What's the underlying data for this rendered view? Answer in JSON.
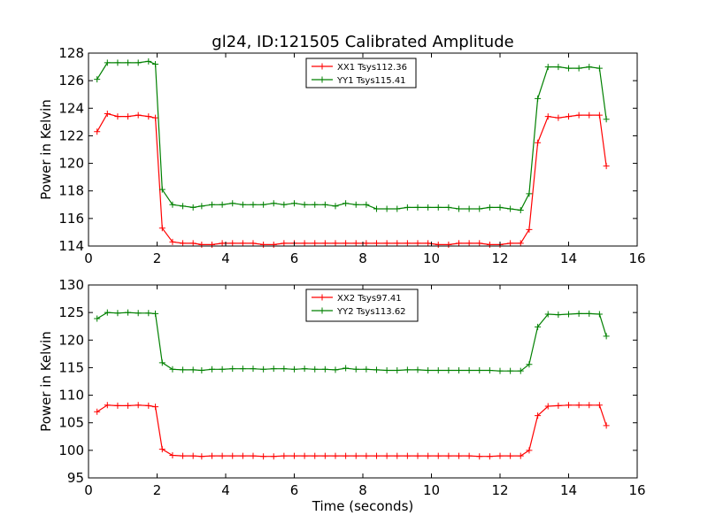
{
  "title": "gl24, ID:121505 Calibrated Amplitude",
  "colors": {
    "red": "#ff0000",
    "green": "#008000",
    "axis": "#000000"
  },
  "chart_data": [
    {
      "type": "line",
      "xlabel": "",
      "ylabel": "Power in Kelvin",
      "xlim": [
        0,
        16
      ],
      "ylim": [
        114,
        128
      ],
      "xticks": [
        0,
        2,
        4,
        6,
        8,
        10,
        12,
        14,
        16
      ],
      "yticks": [
        114,
        116,
        118,
        120,
        122,
        124,
        126,
        128
      ],
      "grid": false,
      "legend": "top-center",
      "x": [
        0.25,
        0.55,
        0.85,
        1.15,
        1.45,
        1.75,
        1.95,
        2.15,
        2.45,
        2.75,
        3.05,
        3.3,
        3.6,
        3.9,
        4.2,
        4.5,
        4.8,
        5.1,
        5.4,
        5.7,
        6.0,
        6.3,
        6.6,
        6.9,
        7.2,
        7.5,
        7.8,
        8.1,
        8.4,
        8.7,
        9.0,
        9.3,
        9.6,
        9.9,
        10.2,
        10.5,
        10.8,
        11.1,
        11.4,
        11.7,
        12.0,
        12.3,
        12.6,
        12.85,
        13.1,
        13.4,
        13.7,
        14.0,
        14.3,
        14.6,
        14.9,
        15.1
      ],
      "series": [
        {
          "name": "XX1 Tsys112.36",
          "color": "#ff0000",
          "values": [
            122.3,
            123.6,
            123.4,
            123.4,
            123.5,
            123.4,
            123.3,
            115.3,
            114.3,
            114.2,
            114.2,
            114.1,
            114.1,
            114.2,
            114.2,
            114.2,
            114.2,
            114.1,
            114.1,
            114.2,
            114.2,
            114.2,
            114.2,
            114.2,
            114.2,
            114.2,
            114.2,
            114.2,
            114.2,
            114.2,
            114.2,
            114.2,
            114.2,
            114.2,
            114.1,
            114.1,
            114.2,
            114.2,
            114.2,
            114.1,
            114.1,
            114.2,
            114.2,
            115.2,
            121.5,
            123.4,
            123.3,
            123.4,
            123.5,
            123.5,
            123.5,
            119.8
          ]
        },
        {
          "name": "YY1 Tsys115.41",
          "color": "#008000",
          "values": [
            126.1,
            127.3,
            127.3,
            127.3,
            127.3,
            127.4,
            127.2,
            118.1,
            117.0,
            116.9,
            116.8,
            116.9,
            117.0,
            117.0,
            117.1,
            117.0,
            117.0,
            117.0,
            117.1,
            117.0,
            117.1,
            117.0,
            117.0,
            117.0,
            116.9,
            117.1,
            117.0,
            117.0,
            116.7,
            116.7,
            116.7,
            116.8,
            116.8,
            116.8,
            116.8,
            116.8,
            116.7,
            116.7,
            116.7,
            116.8,
            116.8,
            116.7,
            116.6,
            117.8,
            124.7,
            127.0,
            127.0,
            126.9,
            126.9,
            127.0,
            126.9,
            123.2
          ]
        }
      ]
    },
    {
      "type": "line",
      "xlabel": "Time (seconds)",
      "ylabel": "Power in Kelvin",
      "xlim": [
        0,
        16
      ],
      "ylim": [
        95,
        130
      ],
      "xticks": [
        0,
        2,
        4,
        6,
        8,
        10,
        12,
        14,
        16
      ],
      "yticks": [
        95,
        100,
        105,
        110,
        115,
        120,
        125,
        130
      ],
      "grid": false,
      "legend": "top-center",
      "x": [
        0.25,
        0.55,
        0.85,
        1.15,
        1.45,
        1.75,
        1.95,
        2.15,
        2.45,
        2.75,
        3.05,
        3.3,
        3.6,
        3.9,
        4.2,
        4.5,
        4.8,
        5.1,
        5.4,
        5.7,
        6.0,
        6.3,
        6.6,
        6.9,
        7.2,
        7.5,
        7.8,
        8.1,
        8.4,
        8.7,
        9.0,
        9.3,
        9.6,
        9.9,
        10.2,
        10.5,
        10.8,
        11.1,
        11.4,
        11.7,
        12.0,
        12.3,
        12.6,
        12.85,
        13.1,
        13.4,
        13.7,
        14.0,
        14.3,
        14.6,
        14.9,
        15.1
      ],
      "series": [
        {
          "name": "XX2 Tsys97.41",
          "color": "#ff0000",
          "values": [
            107.0,
            108.2,
            108.1,
            108.1,
            108.2,
            108.1,
            107.9,
            100.2,
            99.1,
            99.0,
            99.0,
            98.9,
            99.0,
            99.0,
            99.0,
            99.0,
            99.0,
            98.9,
            98.9,
            99.0,
            99.0,
            99.0,
            99.0,
            99.0,
            99.0,
            99.0,
            99.0,
            99.0,
            99.0,
            99.0,
            99.0,
            99.0,
            99.0,
            99.0,
            99.0,
            99.0,
            99.0,
            99.0,
            98.9,
            98.9,
            99.0,
            99.0,
            99.0,
            100.0,
            106.3,
            108.0,
            108.1,
            108.2,
            108.2,
            108.2,
            108.2,
            104.5
          ]
        },
        {
          "name": "YY2 Tsys113.62",
          "color": "#008000",
          "values": [
            123.9,
            125.0,
            124.9,
            125.0,
            124.9,
            124.9,
            124.8,
            115.9,
            114.7,
            114.6,
            114.6,
            114.5,
            114.7,
            114.7,
            114.8,
            114.8,
            114.8,
            114.7,
            114.8,
            114.8,
            114.7,
            114.8,
            114.7,
            114.7,
            114.6,
            114.9,
            114.7,
            114.7,
            114.6,
            114.5,
            114.5,
            114.6,
            114.6,
            114.5,
            114.5,
            114.5,
            114.5,
            114.5,
            114.5,
            114.5,
            114.4,
            114.4,
            114.4,
            115.6,
            122.4,
            124.7,
            124.6,
            124.7,
            124.8,
            124.8,
            124.7,
            120.7
          ]
        }
      ]
    }
  ]
}
